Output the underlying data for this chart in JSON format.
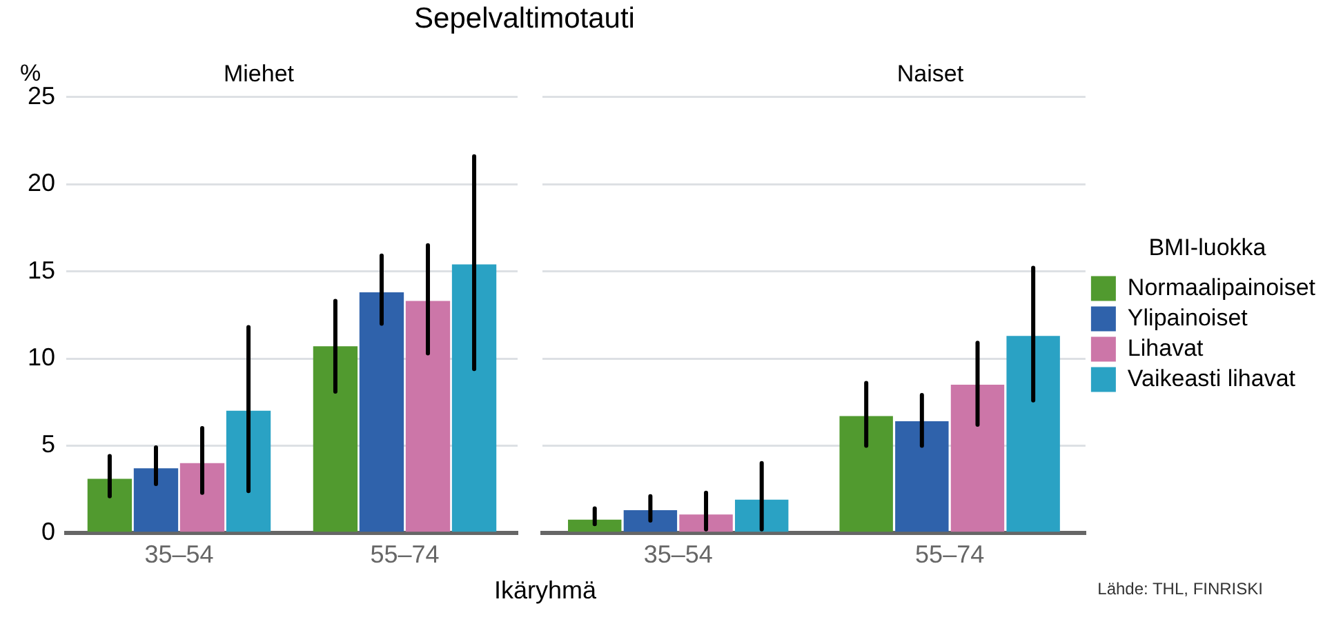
{
  "chart_data": [
    {
      "type": "bar",
      "title": "Sepelvaltimotauti",
      "subtitle": "Miehet",
      "ylabel": "%",
      "xlabel": "Ikäryhmä",
      "categories": [
        "35–54",
        "55–74"
      ],
      "ylim": [
        0,
        25
      ],
      "yticks": [
        0,
        5,
        10,
        15,
        20,
        25
      ],
      "grid": "y",
      "series": [
        {
          "color": "#519a2f",
          "values": [
            3.1,
            10.7
          ],
          "errors": [
            [
              2.1,
              4.4
            ],
            [
              8.1,
              13.3
            ]
          ]
        },
        {
          "color": "#2f62ab",
          "values": [
            3.7,
            13.8
          ],
          "errors": [
            [
              2.8,
              4.9
            ],
            [
              12.0,
              15.9
            ]
          ]
        },
        {
          "color": "#cc76a8",
          "values": [
            4.0,
            13.3
          ],
          "errors": [
            [
              2.3,
              6.0
            ],
            [
              10.3,
              16.5
            ]
          ]
        },
        {
          "color": "#2aa2c4",
          "values": [
            7.0,
            15.4
          ],
          "errors": [
            [
              2.4,
              11.8
            ],
            [
              9.4,
              21.6
            ]
          ]
        }
      ]
    },
    {
      "type": "bar",
      "subtitle": "Naiset",
      "categories": [
        "35–54",
        "55–74"
      ],
      "ylim": [
        0,
        25
      ],
      "yticks": [
        0,
        5,
        10,
        15,
        20,
        25
      ],
      "grid": "y",
      "tick_labels": "x",
      "legend": "right",
      "legend_title": "BMI-luokka",
      "annotations": [
        "Lähde: THL, FINRISKI"
      ],
      "series": [
        {
          "name": "Normaalipainoiset",
          "color": "#519a2f",
          "values": [
            0.75,
            6.7
          ],
          "errors": [
            [
              0.5,
              1.4
            ],
            [
              5.0,
              8.6
            ]
          ]
        },
        {
          "name": "Ylipainoiset",
          "color": "#2f62ab",
          "values": [
            1.3,
            6.4
          ],
          "errors": [
            [
              0.7,
              2.1
            ],
            [
              5.0,
              7.9
            ]
          ]
        },
        {
          "name": "Lihavat",
          "color": "#cc76a8",
          "values": [
            1.05,
            8.5
          ],
          "errors": [
            [
              0.2,
              2.3
            ],
            [
              6.2,
              10.9
            ]
          ]
        },
        {
          "name": "Vaikeasti lihavat",
          "color": "#2aa2c4",
          "values": [
            1.9,
            11.3
          ],
          "errors": [
            [
              0.2,
              4.0
            ],
            [
              7.6,
              15.2
            ]
          ]
        }
      ]
    }
  ]
}
